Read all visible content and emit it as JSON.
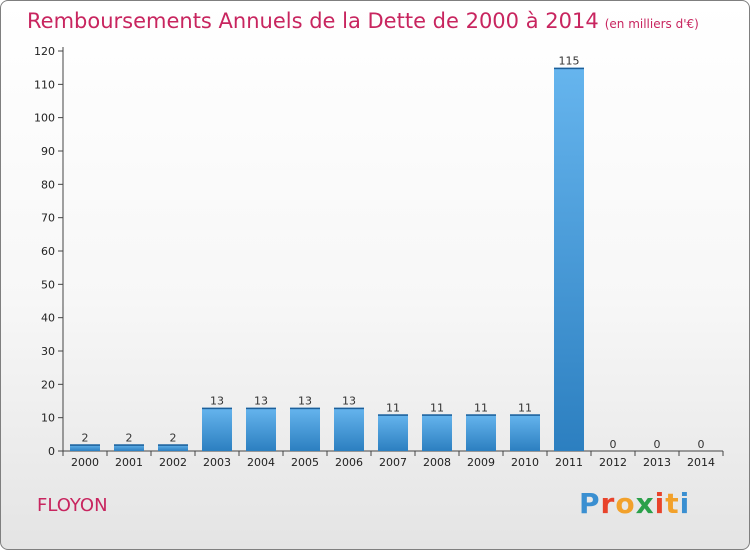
{
  "title": "Remboursements Annuels de la Dette de 2000 à 2014",
  "unit": "(en milliers d'€)",
  "commune": "FLOYON",
  "logo": "Proxiti",
  "colors": {
    "title": "#c8255f",
    "bar_top": "#66b5ee",
    "bar_bottom": "#2c7fc0"
  },
  "chart_data": {
    "type": "bar",
    "categories": [
      "2000",
      "2001",
      "2002",
      "2003",
      "2004",
      "2005",
      "2006",
      "2007",
      "2008",
      "2009",
      "2010",
      "2011",
      "2012",
      "2013",
      "2014"
    ],
    "values": [
      2,
      2,
      2,
      13,
      13,
      13,
      13,
      11,
      11,
      11,
      11,
      115,
      0,
      0,
      0
    ],
    "title": "Remboursements Annuels de la Dette de 2000 à 2014",
    "xlabel": "",
    "ylabel": "",
    "ylim": [
      0,
      120
    ],
    "yticks": [
      0,
      10,
      20,
      30,
      40,
      50,
      60,
      70,
      80,
      90,
      100,
      110,
      120
    ],
    "grid": false,
    "data_labels": true
  }
}
